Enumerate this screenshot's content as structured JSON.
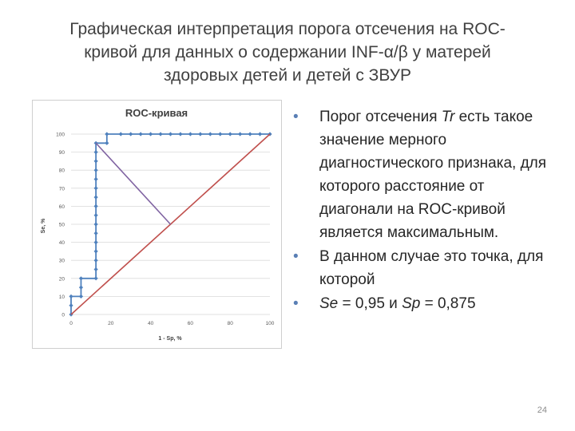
{
  "slide": {
    "title_lines": [
      "Графическая интерпретация порога отсечения на ROC-",
      "кривой для данных о содержании INF-α/β у матерей",
      "здоровых детей и детей с ЗВУР"
    ],
    "page_number": "24"
  },
  "bullets": [
    {
      "marker": "•",
      "parts": [
        "Порог отсечения ",
        "Tr",
        " есть такое значение мерного диагностического признака, для которого расстояние от диагонали на ROC-кривой является максимальным."
      ]
    },
    {
      "marker": "•",
      "parts": [
        "В данном случае это точка, для которой"
      ]
    },
    {
      "marker": "•",
      "parts": [
        "Se",
        " = 0,95 и ",
        "Sp",
        " = 0,875"
      ]
    }
  ],
  "colors": {
    "roc_line": "#4f81bd",
    "diagonal": "#c0504d",
    "threshold_segment": "#8064a2",
    "gridline": "#d9d9d9",
    "bullet_dot": "#5a7fb5"
  },
  "chart_data": {
    "type": "line",
    "title": "ROC-кривая",
    "xlabel": "1 - Sp, %",
    "ylabel": "Se, %",
    "xlim": [
      0,
      100
    ],
    "ylim": [
      0,
      100
    ],
    "x_ticks": [
      "0",
      "20",
      "40",
      "60",
      "80",
      "100"
    ],
    "y_ticks": [
      "0",
      "10",
      "20",
      "30",
      "40",
      "50",
      "60",
      "70",
      "80",
      "90",
      "100"
    ],
    "grid": "horizontal",
    "series": [
      {
        "role": "roc-curve",
        "color": "#4f81bd",
        "marker": "diamond",
        "points": [
          [
            0,
            0
          ],
          [
            0,
            5
          ],
          [
            0,
            10
          ],
          [
            5,
            10
          ],
          [
            5,
            15
          ],
          [
            5,
            20
          ],
          [
            12.5,
            20
          ],
          [
            12.5,
            25
          ],
          [
            12.5,
            30
          ],
          [
            12.5,
            35
          ],
          [
            12.5,
            40
          ],
          [
            12.5,
            45
          ],
          [
            12.5,
            50
          ],
          [
            12.5,
            55
          ],
          [
            12.5,
            60
          ],
          [
            12.5,
            65
          ],
          [
            12.5,
            70
          ],
          [
            12.5,
            75
          ],
          [
            12.5,
            80
          ],
          [
            12.5,
            85
          ],
          [
            12.5,
            90
          ],
          [
            12.5,
            95
          ],
          [
            18,
            95
          ],
          [
            18,
            100
          ],
          [
            25,
            100
          ],
          [
            30,
            100
          ],
          [
            35,
            100
          ],
          [
            40,
            100
          ],
          [
            45,
            100
          ],
          [
            50,
            100
          ],
          [
            55,
            100
          ],
          [
            60,
            100
          ],
          [
            65,
            100
          ],
          [
            70,
            100
          ],
          [
            75,
            100
          ],
          [
            80,
            100
          ],
          [
            85,
            100
          ],
          [
            90,
            100
          ],
          [
            95,
            100
          ],
          [
            100,
            100
          ]
        ]
      },
      {
        "role": "diagonal",
        "color": "#c0504d",
        "points": [
          [
            0,
            0
          ],
          [
            100,
            100
          ]
        ]
      },
      {
        "role": "threshold-distance",
        "color": "#8064a2",
        "points": [
          [
            12.5,
            95
          ],
          [
            50,
            50
          ]
        ]
      }
    ]
  }
}
